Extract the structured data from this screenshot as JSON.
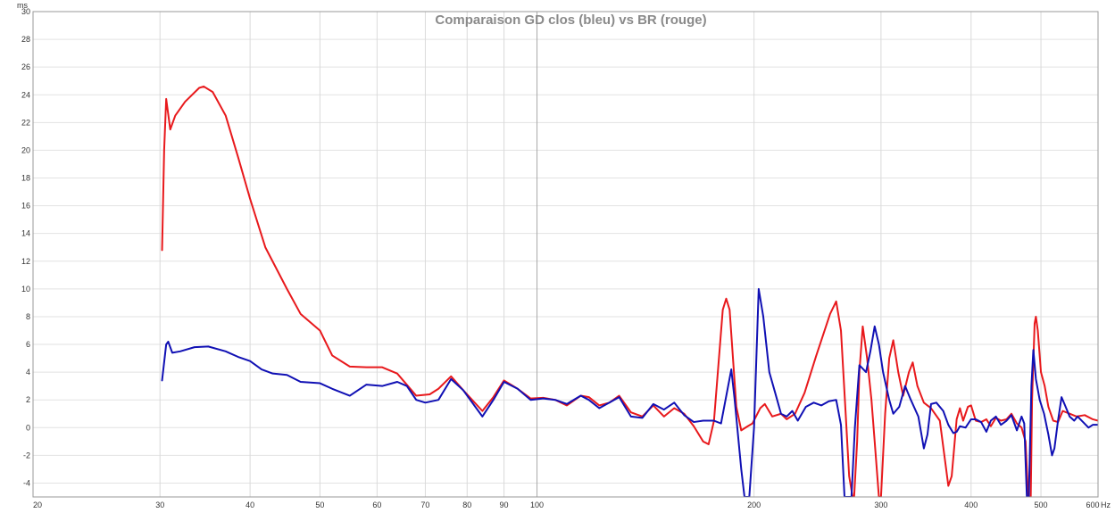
{
  "chart_data": {
    "type": "line",
    "title": "Comparaison GD clos (bleu) vs BR (rouge)",
    "xlabel": "",
    "ylabel": "",
    "x_unit": "Hz",
    "y_unit": "ms",
    "x_scale": "log",
    "xlim": [
      20,
      600
    ],
    "ylim": [
      -5,
      30
    ],
    "grid": true,
    "legend": "none",
    "x_ticks": [
      20,
      30,
      40,
      50,
      60,
      70,
      80,
      90,
      100,
      200,
      300,
      400,
      500,
      600
    ],
    "x_tick_labels": [
      "20",
      "30",
      "40",
      "50",
      "60",
      "70",
      "80",
      "90",
      "100",
      "200",
      "300",
      "400",
      "500",
      "600"
    ],
    "y_ticks": [
      -4,
      -2,
      0,
      2,
      4,
      6,
      8,
      10,
      12,
      14,
      16,
      18,
      20,
      22,
      24,
      26,
      28,
      30
    ],
    "y_tick_labels": [
      "-4",
      "-2",
      "0",
      "2",
      "4",
      "6",
      "8",
      "10",
      "12",
      "14",
      "16",
      "18",
      "20",
      "22",
      "24",
      "26",
      "28",
      "30"
    ],
    "series": [
      {
        "color": "#e8191c",
        "points": [
          [
            30.2,
            12.8
          ],
          [
            30.4,
            20
          ],
          [
            30.6,
            23.7
          ],
          [
            31,
            21.5
          ],
          [
            31.5,
            22.5
          ],
          [
            32.5,
            23.5
          ],
          [
            34,
            24.5
          ],
          [
            34.5,
            24.6
          ],
          [
            35.5,
            24.2
          ],
          [
            37,
            22.5
          ],
          [
            38.5,
            19.5
          ],
          [
            40,
            16.5
          ],
          [
            42,
            13
          ],
          [
            45,
            10
          ],
          [
            47,
            8.2
          ],
          [
            50,
            7
          ],
          [
            52,
            5.2
          ],
          [
            55,
            4.4
          ],
          [
            58,
            4.35
          ],
          [
            61,
            4.35
          ],
          [
            64,
            3.9
          ],
          [
            68,
            2.3
          ],
          [
            71,
            2.4
          ],
          [
            73,
            2.8
          ],
          [
            76,
            3.7
          ],
          [
            79,
            2.7
          ],
          [
            84,
            1.2
          ],
          [
            87,
            2.2
          ],
          [
            90,
            3.4
          ],
          [
            94,
            2.8
          ],
          [
            98,
            2.1
          ],
          [
            102,
            2.15
          ],
          [
            106,
            2.0
          ],
          [
            110,
            1.6
          ],
          [
            115,
            2.3
          ],
          [
            118,
            2.2
          ],
          [
            122,
            1.6
          ],
          [
            126,
            1.8
          ],
          [
            130,
            2.3
          ],
          [
            135,
            1.1
          ],
          [
            140,
            0.8
          ],
          [
            145,
            1.6
          ],
          [
            150,
            0.8
          ],
          [
            155,
            1.4
          ],
          [
            160,
            1.0
          ],
          [
            165,
            0.1
          ],
          [
            170,
            -1.0
          ],
          [
            173,
            -1.2
          ],
          [
            176,
            0.5
          ],
          [
            181,
            8.5
          ],
          [
            183,
            9.3
          ],
          [
            185,
            8.5
          ],
          [
            189,
            1.5
          ],
          [
            192,
            -0.2
          ],
          [
            196,
            0.1
          ],
          [
            199,
            0.3
          ],
          [
            204,
            1.4
          ],
          [
            207,
            1.7
          ],
          [
            212,
            0.8
          ],
          [
            218,
            1.0
          ],
          [
            222,
            0.6
          ],
          [
            228,
            1.0
          ],
          [
            235,
            2.5
          ],
          [
            244,
            5.2
          ],
          [
            255,
            8.2
          ],
          [
            260,
            9.1
          ],
          [
            264,
            7.0
          ],
          [
            268,
            1.0
          ],
          [
            271,
            -3.5
          ],
          [
            275,
            -5.5
          ],
          [
            278,
            -1.0
          ],
          [
            280,
            4.0
          ],
          [
            283,
            7.3
          ],
          [
            287,
            5.0
          ],
          [
            291,
            2.0
          ],
          [
            294,
            -1.0
          ],
          [
            298,
            -5.0
          ],
          [
            300,
            -5.0
          ],
          [
            304,
            1.0
          ],
          [
            308,
            5.0
          ],
          [
            312,
            6.3
          ],
          [
            317,
            4.0
          ],
          [
            322,
            2.3
          ],
          [
            328,
            4.0
          ],
          [
            332,
            4.7
          ],
          [
            337,
            3.0
          ],
          [
            344,
            1.8
          ],
          [
            352,
            1.4
          ],
          [
            362,
            0.5
          ],
          [
            372,
            -4.2
          ],
          [
            376,
            -3.5
          ],
          [
            382,
            0.6
          ],
          [
            386,
            1.4
          ],
          [
            390,
            0.5
          ],
          [
            396,
            1.5
          ],
          [
            400,
            1.6
          ],
          [
            406,
            0.5
          ],
          [
            413,
            0.4
          ],
          [
            420,
            0.6
          ],
          [
            426,
            0.1
          ],
          [
            433,
            0.7
          ],
          [
            440,
            0.5
          ],
          [
            448,
            0.6
          ],
          [
            455,
            1.0
          ],
          [
            463,
            0.3
          ],
          [
            470,
            0.0
          ],
          [
            476,
            -1.0
          ],
          [
            480,
            -5.0
          ],
          [
            484,
            -5.0
          ],
          [
            486,
            2.0
          ],
          [
            490,
            7.5
          ],
          [
            492,
            8.0
          ],
          [
            495,
            7.0
          ],
          [
            500,
            4.0
          ],
          [
            506,
            3.0
          ],
          [
            512,
            1.5
          ],
          [
            520,
            0.5
          ],
          [
            528,
            0.4
          ],
          [
            536,
            1.2
          ],
          [
            548,
            1.0
          ],
          [
            560,
            0.8
          ],
          [
            575,
            0.9
          ],
          [
            590,
            0.6
          ],
          [
            600,
            0.5
          ]
        ]
      },
      {
        "color": "#1010b4",
        "points": [
          [
            30.2,
            3.4
          ],
          [
            30.6,
            6.0
          ],
          [
            30.8,
            6.2
          ],
          [
            31.2,
            5.4
          ],
          [
            32,
            5.5
          ],
          [
            33.5,
            5.8
          ],
          [
            35,
            5.85
          ],
          [
            37,
            5.5
          ],
          [
            38.5,
            5.1
          ],
          [
            40,
            4.8
          ],
          [
            41.5,
            4.2
          ],
          [
            43,
            3.9
          ],
          [
            45,
            3.8
          ],
          [
            47,
            3.3
          ],
          [
            50,
            3.2
          ],
          [
            52,
            2.8
          ],
          [
            55,
            2.3
          ],
          [
            58,
            3.1
          ],
          [
            61,
            3.0
          ],
          [
            64,
            3.3
          ],
          [
            66,
            3.0
          ],
          [
            68,
            2.0
          ],
          [
            70,
            1.8
          ],
          [
            73,
            2.0
          ],
          [
            76,
            3.5
          ],
          [
            79,
            2.7
          ],
          [
            84,
            0.8
          ],
          [
            87,
            2.0
          ],
          [
            90,
            3.3
          ],
          [
            94,
            2.8
          ],
          [
            98,
            2.0
          ],
          [
            102,
            2.1
          ],
          [
            106,
            2.0
          ],
          [
            110,
            1.7
          ],
          [
            115,
            2.3
          ],
          [
            118,
            2.0
          ],
          [
            122,
            1.4
          ],
          [
            126,
            1.8
          ],
          [
            130,
            2.2
          ],
          [
            135,
            0.8
          ],
          [
            140,
            0.7
          ],
          [
            145,
            1.7
          ],
          [
            150,
            1.3
          ],
          [
            155,
            1.8
          ],
          [
            160,
            0.9
          ],
          [
            165,
            0.4
          ],
          [
            170,
            0.5
          ],
          [
            176,
            0.5
          ],
          [
            180,
            0.3
          ],
          [
            186,
            4.2
          ],
          [
            188,
            2.0
          ],
          [
            192,
            -3.0
          ],
          [
            194,
            -5.0
          ],
          [
            197,
            -5.0
          ],
          [
            200,
            0.0
          ],
          [
            203,
            10.0
          ],
          [
            206,
            8.0
          ],
          [
            210,
            4.0
          ],
          [
            214,
            2.5
          ],
          [
            218,
            1.0
          ],
          [
            222,
            0.8
          ],
          [
            226,
            1.2
          ],
          [
            230,
            0.5
          ],
          [
            236,
            1.5
          ],
          [
            242,
            1.8
          ],
          [
            248,
            1.6
          ],
          [
            254,
            1.9
          ],
          [
            260,
            2.0
          ],
          [
            264,
            0.2
          ],
          [
            267,
            -5.0
          ],
          [
            270,
            -5.0
          ],
          [
            273,
            -5.0
          ],
          [
            276,
            0.0
          ],
          [
            280,
            4.5
          ],
          [
            286,
            4.0
          ],
          [
            290,
            5.5
          ],
          [
            294,
            7.3
          ],
          [
            298,
            6.0
          ],
          [
            302,
            4.0
          ],
          [
            308,
            2.0
          ],
          [
            312,
            1.0
          ],
          [
            318,
            1.5
          ],
          [
            324,
            3.0
          ],
          [
            330,
            2.0
          ],
          [
            338,
            0.8
          ],
          [
            344,
            -1.5
          ],
          [
            348,
            -0.5
          ],
          [
            352,
            1.7
          ],
          [
            358,
            1.8
          ],
          [
            366,
            1.2
          ],
          [
            372,
            0.2
          ],
          [
            378,
            -0.4
          ],
          [
            382,
            -0.3
          ],
          [
            386,
            0.1
          ],
          [
            393,
            0.0
          ],
          [
            400,
            0.6
          ],
          [
            406,
            0.6
          ],
          [
            413,
            0.4
          ],
          [
            420,
            -0.3
          ],
          [
            426,
            0.5
          ],
          [
            433,
            0.8
          ],
          [
            440,
            0.2
          ],
          [
            448,
            0.5
          ],
          [
            455,
            0.9
          ],
          [
            463,
            -0.2
          ],
          [
            470,
            0.8
          ],
          [
            474,
            0.3
          ],
          [
            478,
            -5.0
          ],
          [
            481,
            -5.0
          ],
          [
            485,
            3.0
          ],
          [
            488,
            5.6
          ],
          [
            492,
            3.5
          ],
          [
            498,
            2.0
          ],
          [
            505,
            1.0
          ],
          [
            512,
            -0.5
          ],
          [
            518,
            -2.0
          ],
          [
            522,
            -1.5
          ],
          [
            528,
            0.5
          ],
          [
            534,
            2.2
          ],
          [
            540,
            1.6
          ],
          [
            548,
            0.8
          ],
          [
            556,
            0.5
          ],
          [
            562,
            0.8
          ],
          [
            572,
            0.4
          ],
          [
            582,
            0.0
          ],
          [
            590,
            0.2
          ],
          [
            600,
            0.2
          ]
        ]
      }
    ]
  }
}
